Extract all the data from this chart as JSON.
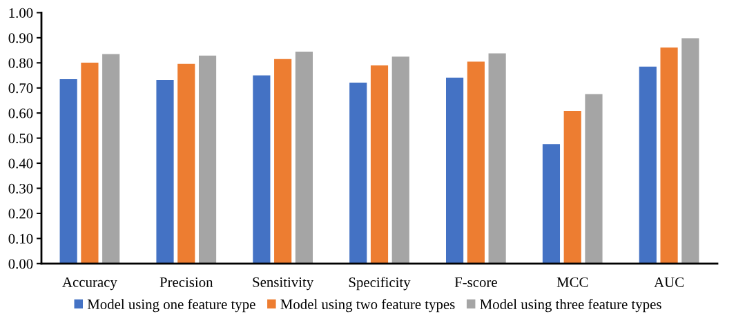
{
  "chart_data": {
    "type": "bar",
    "categories": [
      "Accuracy",
      "Precision",
      "Sensitivity",
      "Specificity",
      "F-score",
      "MCC",
      "AUC"
    ],
    "series": [
      {
        "name": "Model using one feature type",
        "color": "#4472c4",
        "values": [
          0.735,
          0.732,
          0.75,
          0.721,
          0.741,
          0.476,
          0.785
        ]
      },
      {
        "name": "Model using two feature types",
        "color": "#ed7d31",
        "values": [
          0.801,
          0.796,
          0.815,
          0.79,
          0.805,
          0.609,
          0.861
        ]
      },
      {
        "name": "Model using three feature types",
        "color": "#a5a5a5",
        "values": [
          0.835,
          0.829,
          0.845,
          0.825,
          0.838,
          0.675,
          0.898
        ]
      }
    ],
    "ylim": [
      0,
      1.0
    ],
    "yticks": [
      {
        "value": 0,
        "label": "0.00"
      },
      {
        "value": 0.1,
        "label": "0.10"
      },
      {
        "value": 0.2,
        "label": "0.20"
      },
      {
        "value": 0.3,
        "label": "0.30"
      },
      {
        "value": 0.4,
        "label": "0.40"
      },
      {
        "value": 0.5,
        "label": "0.50"
      },
      {
        "value": 0.6,
        "label": "0.60"
      },
      {
        "value": 0.7,
        "label": "0.70"
      },
      {
        "value": 0.8,
        "label": "0.80"
      },
      {
        "value": 0.9,
        "label": "0.90"
      },
      {
        "value": 1.0,
        "label": "1.00"
      }
    ],
    "grid": false,
    "legend": "bottom"
  }
}
